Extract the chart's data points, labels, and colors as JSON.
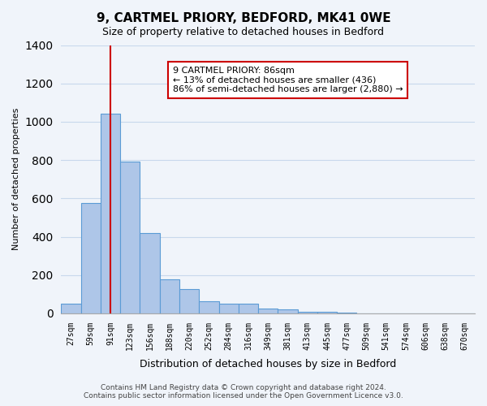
{
  "title": "9, CARTMEL PRIORY, BEDFORD, MK41 0WE",
  "subtitle": "Size of property relative to detached houses in Bedford",
  "xlabel": "Distribution of detached houses by size in Bedford",
  "ylabel": "Number of detached properties",
  "bar_labels": [
    "27sqm",
    "59sqm",
    "91sqm",
    "123sqm",
    "156sqm",
    "188sqm",
    "220sqm",
    "252sqm",
    "284sqm",
    "316sqm",
    "349sqm",
    "381sqm",
    "413sqm",
    "445sqm",
    "477sqm",
    "509sqm",
    "541sqm",
    "574sqm",
    "606sqm",
    "638sqm",
    "670sqm"
  ],
  "bar_values": [
    50,
    575,
    1040,
    790,
    420,
    178,
    125,
    65,
    50,
    50,
    25,
    22,
    10,
    8,
    5,
    0,
    0,
    0,
    0,
    0,
    0
  ],
  "bar_color": "#aec6e8",
  "bar_edge_color": "#5b9bd5",
  "vline_x": 2,
  "vline_color": "#cc0000",
  "ylim": [
    0,
    1400
  ],
  "yticks": [
    0,
    200,
    400,
    600,
    800,
    1000,
    1200,
    1400
  ],
  "annotation_text": "9 CARTMEL PRIORY: 86sqm\n← 13% of detached houses are smaller (436)\n86% of semi-detached houses are larger (2,880) →",
  "annotation_box_color": "#ffffff",
  "annotation_box_edge": "#cc0000",
  "footer_line1": "Contains HM Land Registry data © Crown copyright and database right 2024.",
  "footer_line2": "Contains public sector information licensed under the Open Government Licence v3.0.",
  "background_color": "#f0f4fa",
  "grid_color": "#c8d8ec"
}
